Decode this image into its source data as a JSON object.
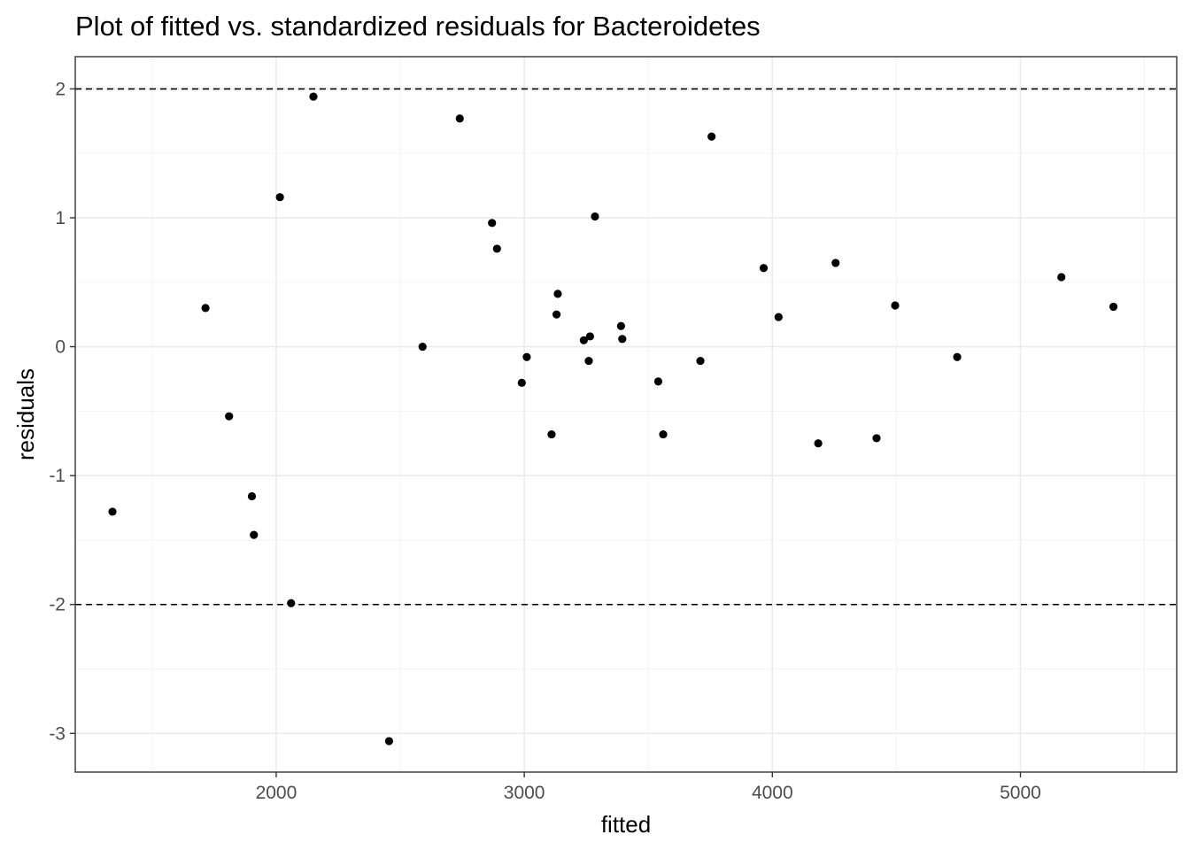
{
  "chart_data": {
    "type": "scatter",
    "title": "Plot of fitted vs. standardized residuals for Bacteroidetes",
    "xlabel": "fitted",
    "ylabel": "residuals",
    "xlim": [
      1190,
      5630
    ],
    "ylim": [
      -3.3,
      2.25
    ],
    "x_ticks": [
      2000,
      3000,
      4000,
      5000
    ],
    "x_tick_labels": [
      "2000",
      "3000",
      "4000",
      "5000"
    ],
    "x_minor": [
      1500,
      2500,
      3500,
      4500,
      5500
    ],
    "y_ticks": [
      -3,
      -2,
      -1,
      0,
      1,
      2
    ],
    "y_tick_labels": [
      "-3",
      "-2",
      "-1",
      "0",
      "1",
      "2"
    ],
    "y_minor": [
      -2.5,
      -1.5,
      -0.5,
      0.5,
      1.5
    ],
    "reference_lines": [
      2,
      -2
    ],
    "grid": true,
    "theme": "bw",
    "point_color": "#000000",
    "points": [
      {
        "x": 1340,
        "y": -1.28
      },
      {
        "x": 1715,
        "y": 0.3
      },
      {
        "x": 1810,
        "y": -0.54
      },
      {
        "x": 1902,
        "y": -1.16
      },
      {
        "x": 1910,
        "y": -1.46
      },
      {
        "x": 2015,
        "y": 1.16
      },
      {
        "x": 2060,
        "y": -1.99
      },
      {
        "x": 2150,
        "y": 1.94
      },
      {
        "x": 2455,
        "y": -3.06
      },
      {
        "x": 2590,
        "y": 0.0
      },
      {
        "x": 2740,
        "y": 1.77
      },
      {
        "x": 2870,
        "y": 0.96
      },
      {
        "x": 2890,
        "y": 0.76
      },
      {
        "x": 2990,
        "y": -0.28
      },
      {
        "x": 3010,
        "y": -0.08
      },
      {
        "x": 3110,
        "y": -0.68
      },
      {
        "x": 3130,
        "y": 0.25
      },
      {
        "x": 3135,
        "y": 0.41
      },
      {
        "x": 3240,
        "y": 0.05
      },
      {
        "x": 3260,
        "y": -0.11
      },
      {
        "x": 3265,
        "y": 0.08
      },
      {
        "x": 3285,
        "y": 1.01
      },
      {
        "x": 3390,
        "y": 0.16
      },
      {
        "x": 3395,
        "y": 0.06
      },
      {
        "x": 3540,
        "y": -0.27
      },
      {
        "x": 3560,
        "y": -0.68
      },
      {
        "x": 3710,
        "y": -0.11
      },
      {
        "x": 3755,
        "y": 1.63
      },
      {
        "x": 3965,
        "y": 0.61
      },
      {
        "x": 4025,
        "y": 0.23
      },
      {
        "x": 4185,
        "y": -0.75
      },
      {
        "x": 4255,
        "y": 0.65
      },
      {
        "x": 4420,
        "y": -0.71
      },
      {
        "x": 4495,
        "y": 0.32
      },
      {
        "x": 4745,
        "y": -0.08
      },
      {
        "x": 5165,
        "y": 0.54
      },
      {
        "x": 5375,
        "y": 0.31
      }
    ]
  }
}
